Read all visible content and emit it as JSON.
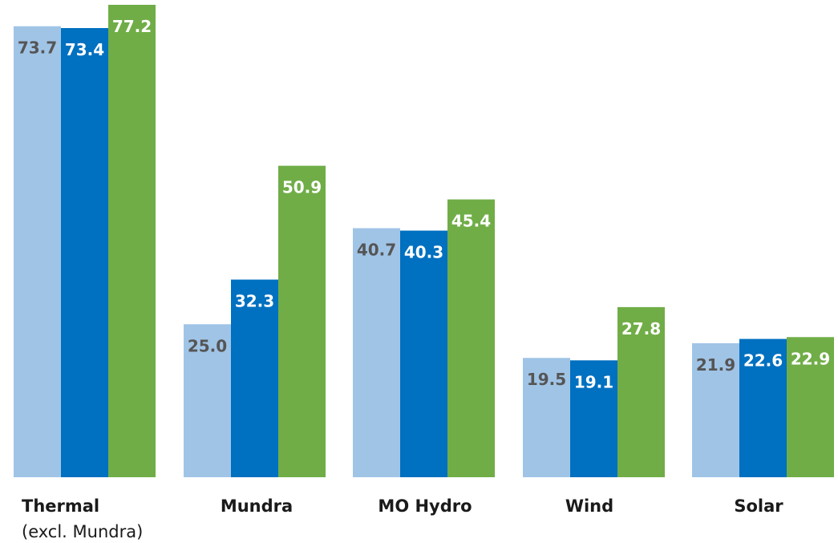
{
  "chart_data": {
    "type": "bar",
    "categories": [
      "Thermal",
      "Mundra",
      "MO Hydro",
      "Wind",
      "Solar"
    ],
    "category_sublabels": [
      "(excl. Mundra)",
      "",
      "",
      "",
      ""
    ],
    "series": [
      {
        "values": [
          73.7,
          25.0,
          40.7,
          19.5,
          21.9
        ],
        "color": "#a0c4e6",
        "label_color": "#555555"
      },
      {
        "values": [
          73.4,
          32.3,
          40.3,
          19.1,
          22.6
        ],
        "color": "#0070c0",
        "label_color": "#ffffff"
      },
      {
        "values": [
          77.2,
          50.9,
          45.4,
          27.8,
          22.9
        ],
        "color": "#70ad47",
        "label_color": "#ffffff"
      }
    ],
    "ylim": [
      0,
      77.2
    ],
    "grid": false,
    "legend": "none",
    "title": "",
    "xlabel": "",
    "ylabel": ""
  }
}
